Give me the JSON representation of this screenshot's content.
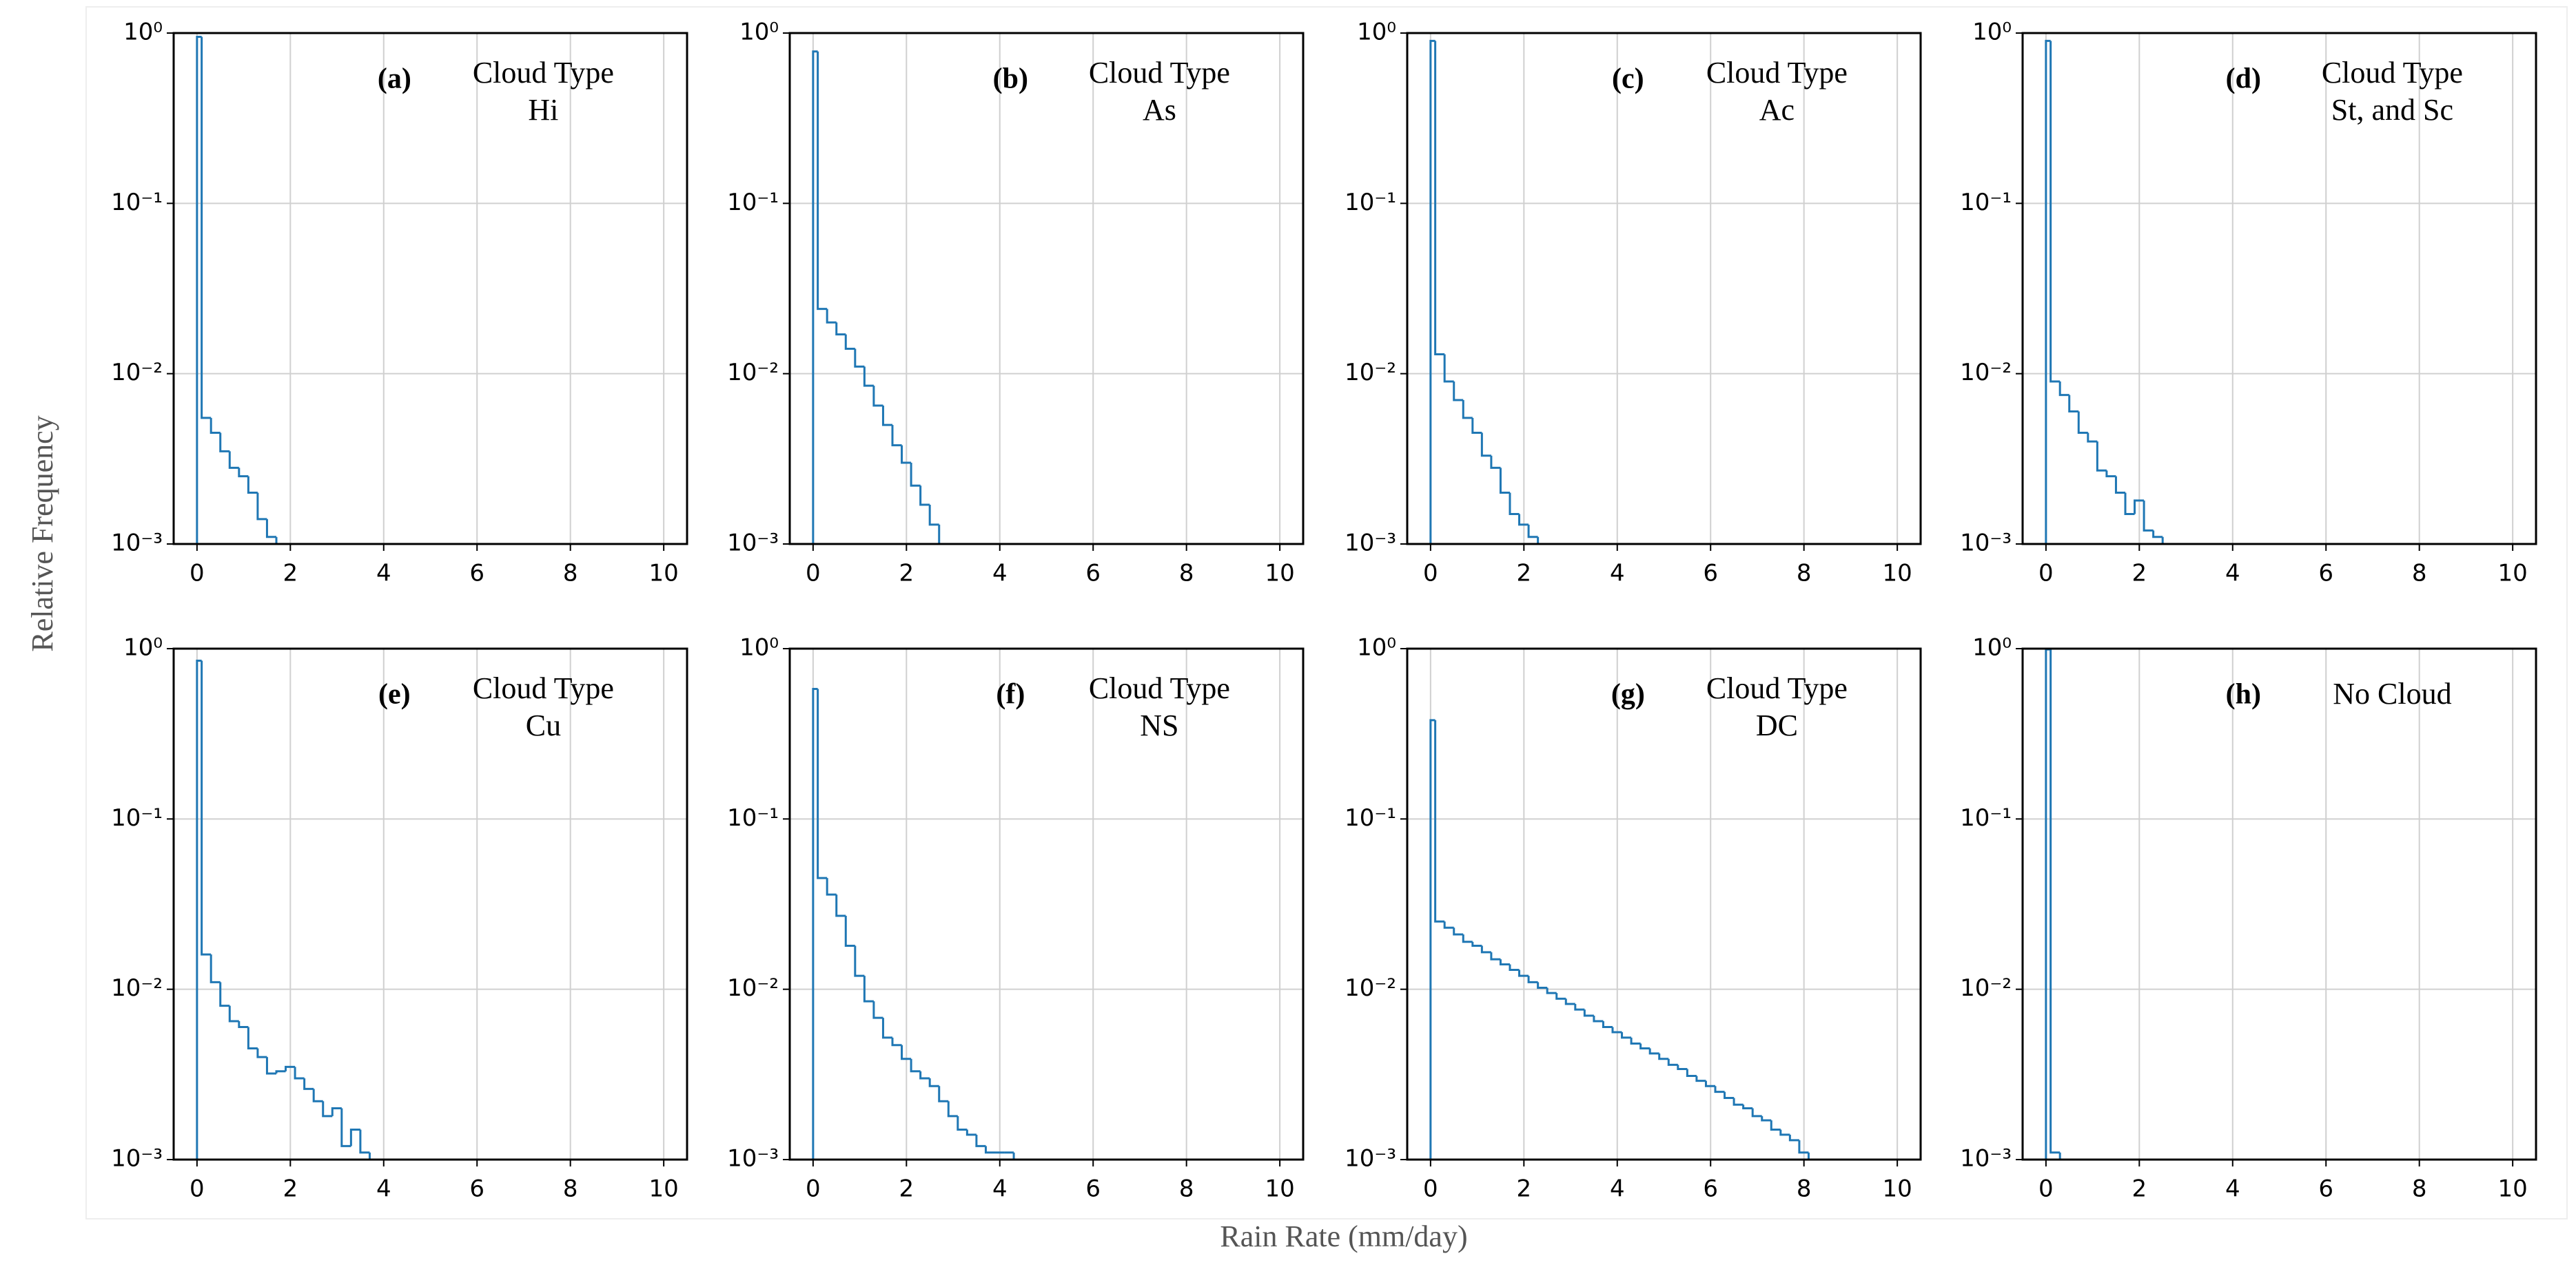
{
  "ylabel": "Relative Frequency",
  "xlabel": "Rain Rate (mm/day)",
  "chart_data": [
    {
      "type": "histogram",
      "panel_label": "(a)",
      "title": "Cloud Type",
      "subtitle": "Hi",
      "color": "#1f77b4",
      "log_y": true,
      "grid": true,
      "bins": [
        0,
        0.1,
        0.3,
        0.5,
        0.7,
        0.9,
        1.1,
        1.3,
        1.5,
        1.7
      ],
      "values": [
        0.95,
        0.0055,
        0.0045,
        0.0035,
        0.0028,
        0.0025,
        0.002,
        0.0014,
        0.0011
      ],
      "xlim": [
        -0.5,
        10.5
      ],
      "xticks": [
        0,
        2,
        4,
        6,
        8,
        10
      ],
      "ylim": [
        0.001,
        1
      ],
      "yticks": [
        {
          "value": 0.001,
          "label": "10⁻³"
        },
        {
          "value": 0.01,
          "label": "10⁻²"
        },
        {
          "value": 0.1,
          "label": "10⁻¹"
        },
        {
          "value": 1,
          "label": "10⁰"
        }
      ]
    },
    {
      "type": "histogram",
      "panel_label": "(b)",
      "title": "Cloud Type",
      "subtitle": "As",
      "color": "#1f77b4",
      "log_y": true,
      "grid": true,
      "bins": [
        0,
        0.1,
        0.3,
        0.5,
        0.7,
        0.9,
        1.1,
        1.3,
        1.5,
        1.7,
        1.9,
        2.1,
        2.3,
        2.5,
        2.7
      ],
      "values": [
        0.78,
        0.024,
        0.02,
        0.017,
        0.014,
        0.011,
        0.0085,
        0.0065,
        0.005,
        0.0038,
        0.003,
        0.0022,
        0.0017,
        0.0013
      ],
      "xlim": [
        -0.5,
        10.5
      ],
      "xticks": [
        0,
        2,
        4,
        6,
        8,
        10
      ],
      "ylim": [
        0.001,
        1
      ],
      "yticks": [
        {
          "value": 0.001,
          "label": "10⁻³"
        },
        {
          "value": 0.01,
          "label": "10⁻²"
        },
        {
          "value": 0.1,
          "label": "10⁻¹"
        },
        {
          "value": 1,
          "label": "10⁰"
        }
      ]
    },
    {
      "type": "histogram",
      "panel_label": "(c)",
      "title": "Cloud Type",
      "subtitle": "Ac",
      "color": "#1f77b4",
      "log_y": true,
      "grid": true,
      "bins": [
        0,
        0.1,
        0.3,
        0.5,
        0.7,
        0.9,
        1.1,
        1.3,
        1.5,
        1.7,
        1.9,
        2.1,
        2.3
      ],
      "values": [
        0.9,
        0.013,
        0.009,
        0.007,
        0.0055,
        0.0045,
        0.0033,
        0.0028,
        0.002,
        0.0015,
        0.0013,
        0.0011
      ],
      "xlim": [
        -0.5,
        10.5
      ],
      "xticks": [
        0,
        2,
        4,
        6,
        8,
        10
      ],
      "ylim": [
        0.001,
        1
      ],
      "yticks": [
        {
          "value": 0.001,
          "label": "10⁻³"
        },
        {
          "value": 0.01,
          "label": "10⁻²"
        },
        {
          "value": 0.1,
          "label": "10⁻¹"
        },
        {
          "value": 1,
          "label": "10⁰"
        }
      ]
    },
    {
      "type": "histogram",
      "panel_label": "(d)",
      "title": "Cloud Type",
      "subtitle": "St, and Sc",
      "color": "#1f77b4",
      "log_y": true,
      "grid": true,
      "bins": [
        0,
        0.1,
        0.3,
        0.5,
        0.7,
        0.9,
        1.1,
        1.3,
        1.5,
        1.7,
        1.9,
        2.1,
        2.3,
        2.5
      ],
      "values": [
        0.9,
        0.009,
        0.0075,
        0.006,
        0.0045,
        0.004,
        0.0027,
        0.0025,
        0.002,
        0.0015,
        0.0018,
        0.0012,
        0.0011
      ],
      "xlim": [
        -0.5,
        10.5
      ],
      "xticks": [
        0,
        2,
        4,
        6,
        8,
        10
      ],
      "ylim": [
        0.001,
        1
      ],
      "yticks": [
        {
          "value": 0.001,
          "label": "10⁻³"
        },
        {
          "value": 0.01,
          "label": "10⁻²"
        },
        {
          "value": 0.1,
          "label": "10⁻¹"
        },
        {
          "value": 1,
          "label": "10⁰"
        }
      ]
    },
    {
      "type": "histogram",
      "panel_label": "(e)",
      "title": "Cloud Type",
      "subtitle": "Cu",
      "color": "#1f77b4",
      "log_y": true,
      "grid": true,
      "bins": [
        0,
        0.1,
        0.3,
        0.5,
        0.7,
        0.9,
        1.1,
        1.3,
        1.5,
        1.7,
        1.9,
        2.1,
        2.3,
        2.5,
        2.7,
        2.9,
        3.1,
        3.3,
        3.5,
        3.7
      ],
      "values": [
        0.85,
        0.016,
        0.011,
        0.008,
        0.0065,
        0.006,
        0.0045,
        0.004,
        0.0032,
        0.0033,
        0.0035,
        0.003,
        0.0026,
        0.0022,
        0.0018,
        0.002,
        0.0012,
        0.0015,
        0.0011
      ],
      "xlim": [
        -0.5,
        10.5
      ],
      "xticks": [
        0,
        2,
        4,
        6,
        8,
        10
      ],
      "ylim": [
        0.001,
        1
      ],
      "yticks": [
        {
          "value": 0.001,
          "label": "10⁻³"
        },
        {
          "value": 0.01,
          "label": "10⁻²"
        },
        {
          "value": 0.1,
          "label": "10⁻¹"
        },
        {
          "value": 1,
          "label": "10⁰"
        }
      ]
    },
    {
      "type": "histogram",
      "panel_label": "(f)",
      "title": "Cloud Type",
      "subtitle": "NS",
      "color": "#1f77b4",
      "log_y": true,
      "grid": true,
      "bins": [
        0,
        0.1,
        0.3,
        0.5,
        0.7,
        0.9,
        1.1,
        1.3,
        1.5,
        1.7,
        1.9,
        2.1,
        2.3,
        2.5,
        2.7,
        2.9,
        3.1,
        3.3,
        3.5,
        3.7,
        3.9,
        4.1,
        4.3
      ],
      "values": [
        0.58,
        0.045,
        0.036,
        0.027,
        0.018,
        0.012,
        0.0085,
        0.0068,
        0.0052,
        0.0047,
        0.0039,
        0.0033,
        0.003,
        0.0027,
        0.0022,
        0.0018,
        0.0015,
        0.0014,
        0.0012,
        0.0011,
        0.0011,
        0.0011
      ],
      "xlim": [
        -0.5,
        10.5
      ],
      "xticks": [
        0,
        2,
        4,
        6,
        8,
        10
      ],
      "ylim": [
        0.001,
        1
      ],
      "yticks": [
        {
          "value": 0.001,
          "label": "10⁻³"
        },
        {
          "value": 0.01,
          "label": "10⁻²"
        },
        {
          "value": 0.1,
          "label": "10⁻¹"
        },
        {
          "value": 1,
          "label": "10⁰"
        }
      ]
    },
    {
      "type": "histogram",
      "panel_label": "(g)",
      "title": "Cloud Type",
      "subtitle": "DC",
      "color": "#1f77b4",
      "log_y": true,
      "grid": true,
      "bins": [
        0,
        0.1,
        0.3,
        0.5,
        0.7,
        0.9,
        1.1,
        1.3,
        1.5,
        1.7,
        1.9,
        2.1,
        2.3,
        2.5,
        2.7,
        2.9,
        3.1,
        3.3,
        3.5,
        3.7,
        3.9,
        4.1,
        4.3,
        4.5,
        4.7,
        4.9,
        5.1,
        5.3,
        5.5,
        5.7,
        5.9,
        6.1,
        6.3,
        6.5,
        6.7,
        6.9,
        7.1,
        7.3,
        7.5,
        7.7,
        7.9,
        8.1
      ],
      "values": [
        0.38,
        0.025,
        0.023,
        0.021,
        0.019,
        0.018,
        0.0165,
        0.015,
        0.014,
        0.013,
        0.012,
        0.011,
        0.0102,
        0.0095,
        0.0088,
        0.0082,
        0.0076,
        0.007,
        0.0065,
        0.006,
        0.0056,
        0.0052,
        0.0048,
        0.0045,
        0.0042,
        0.0039,
        0.0036,
        0.0034,
        0.0031,
        0.0029,
        0.0027,
        0.0025,
        0.0023,
        0.0021,
        0.002,
        0.0018,
        0.0017,
        0.0015,
        0.0014,
        0.0013,
        0.0011
      ],
      "xlim": [
        -0.5,
        10.5
      ],
      "xticks": [
        0,
        2,
        4,
        6,
        8,
        10
      ],
      "ylim": [
        0.001,
        1
      ],
      "yticks": [
        {
          "value": 0.001,
          "label": "10⁻³"
        },
        {
          "value": 0.01,
          "label": "10⁻²"
        },
        {
          "value": 0.1,
          "label": "10⁻¹"
        },
        {
          "value": 1,
          "label": "10⁰"
        }
      ]
    },
    {
      "type": "histogram",
      "panel_label": "(h)",
      "title": "No Cloud",
      "color": "#1f77b4",
      "log_y": true,
      "grid": true,
      "bins": [
        0,
        0.1,
        0.3
      ],
      "values": [
        0.99,
        0.0011
      ],
      "xlim": [
        -0.5,
        10.5
      ],
      "xticks": [
        0,
        2,
        4,
        6,
        8,
        10
      ],
      "ylim": [
        0.001,
        1
      ],
      "yticks": [
        {
          "value": 0.001,
          "label": "10⁻³"
        },
        {
          "value": 0.01,
          "label": "10⁻²"
        },
        {
          "value": 0.1,
          "label": "10⁻¹"
        },
        {
          "value": 1,
          "label": "10⁰"
        }
      ]
    }
  ]
}
